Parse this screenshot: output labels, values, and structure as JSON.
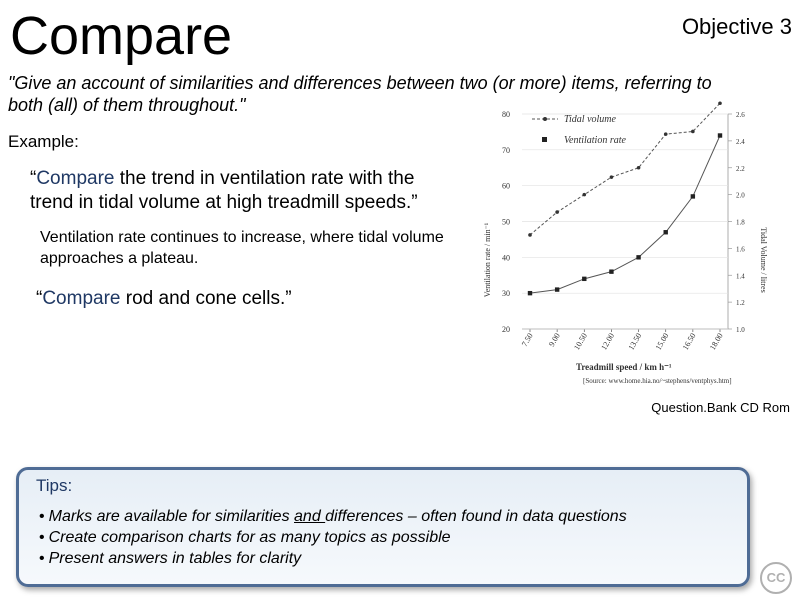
{
  "slide": {
    "title": "Compare",
    "objective": "Objective 3",
    "definition": "\"Give an account of similarities and differences between two (or more) items, referring to both (all) of them throughout.\"",
    "example_label": "Example:",
    "q1_kw": "Compare",
    "q1_rest": " the trend in ventilation rate with the trend in tidal volume at high treadmill speeds.”",
    "q1_open": "“",
    "a1": "Ventilation rate continues to increase, where tidal volume approaches a plateau.",
    "q2_open": "“",
    "q2_kw": "Compare",
    "q2_rest": " rod and cone cells.”",
    "source": "Question.Bank CD Rom",
    "cc": "CC"
  },
  "tips": {
    "title": "Tips:",
    "line1_a": "Marks are available for similarities ",
    "line1_u": "and ",
    "line1_b": "differences – often found in data questions",
    "line2": "Create comparison  charts for as many topics as possible",
    "line3": "Present answers in tables for clarity"
  },
  "chart_data": {
    "type": "line",
    "xlabel": "Treadmill speed / km h⁻¹",
    "ylabel": "Ventilation rate / min⁻¹",
    "y2label": "Tidal Volume / litres",
    "source_note": "[Source: www.home.hia.no/~stephens/ventphys.htm]",
    "x": [
      "7.50",
      "9.00",
      "10.50",
      "12.00",
      "13.50",
      "15.00",
      "16.50",
      "18.00"
    ],
    "ylim": [
      20,
      80
    ],
    "y_ticks": [
      20,
      30,
      40,
      50,
      60,
      70,
      80
    ],
    "y2lim": [
      1.0,
      2.6
    ],
    "y2_ticks": [
      "1.0",
      "1.2",
      "1.4",
      "1.6",
      "1.8",
      "2.0",
      "2.2",
      "2.4",
      "2.6"
    ],
    "legend": [
      "Tidal volume",
      "Ventilation rate"
    ],
    "legend_position": "top-right",
    "series": [
      {
        "name": "Tidal volume",
        "axis": "right",
        "style": "dashed",
        "values": [
          1.7,
          1.87,
          2.0,
          2.13,
          2.2,
          2.45,
          2.47,
          2.68
        ]
      },
      {
        "name": "Ventilation rate",
        "axis": "left",
        "style": "solid",
        "values": [
          30,
          31,
          34,
          36,
          40,
          47,
          57,
          74
        ]
      }
    ]
  }
}
